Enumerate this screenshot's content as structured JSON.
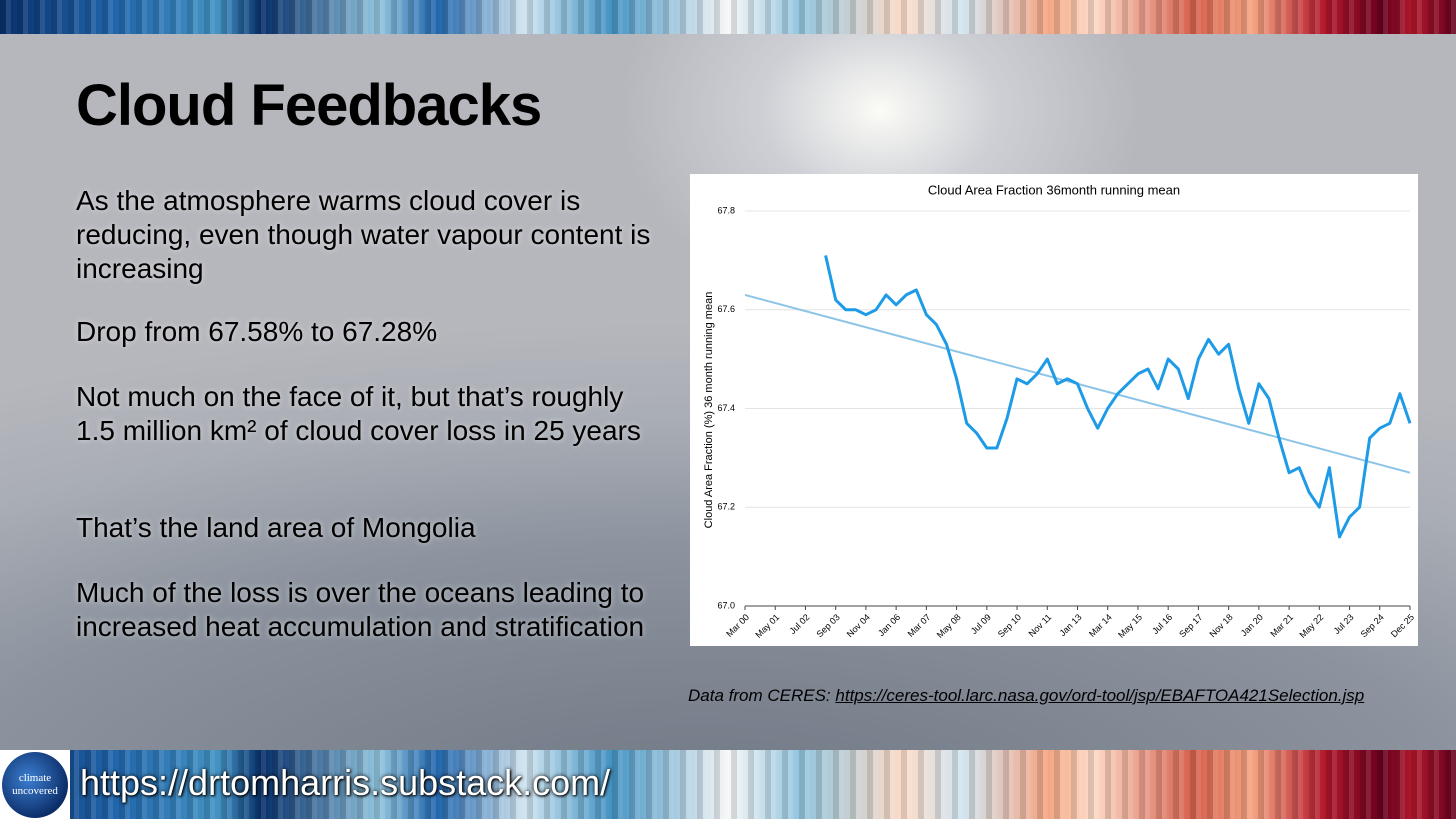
{
  "slide": {
    "title": "Cloud Feedbacks",
    "paragraphs": [
      "As the atmosphere warms cloud cover is reducing, even though water vapour content is increasing",
      "Drop from 67.58% to 67.28%",
      "Not much on the face of it, but that’s roughly 1.5 million km² of cloud cover loss in 25 years",
      "That’s the land area of Mongolia",
      "Much of the loss is over the oceans leading to increased heat accumulation and stratification"
    ],
    "source_prefix": "Data from CERES:",
    "source_link": "https://ceres-tool.larc.nasa.gov/ord-tool/jsp/EBAFTOA421Selection.jsp",
    "logo_text": [
      "climate",
      "uncovered"
    ],
    "footer_url": "https://drtomharris.substack.com/"
  },
  "chart_data": {
    "type": "line",
    "title": "Cloud Area Fraction 36month running mean",
    "y_label": "Cloud Area Fraction (%) 36 month running mean",
    "categories": [
      "Mar 00",
      null,
      null,
      "May 01",
      null,
      null,
      "Jul 02",
      null,
      null,
      "Sep 03",
      null,
      null,
      "Nov 04",
      null,
      null,
      "Jan 06",
      null,
      null,
      "Mar 07",
      null,
      null,
      "May 08",
      null,
      null,
      "Jul 09",
      null,
      null,
      "Sep 10",
      null,
      null,
      "Nov 11",
      null,
      null,
      "Jan 13",
      null,
      null,
      "Mar 14",
      null,
      null,
      "May 15",
      null,
      null,
      "Jul 16",
      null,
      null,
      "Sep 17",
      null,
      null,
      "Nov 18",
      null,
      null,
      "Jan 20",
      null,
      null,
      "Mar 21",
      null,
      null,
      "May 22",
      null,
      null,
      "Jul 23",
      null,
      null,
      "Sep 24",
      null,
      null,
      "Dec 25"
    ],
    "series": [
      {
        "color": "#1e9be6",
        "values": [
          null,
          null,
          null,
          null,
          null,
          null,
          null,
          null,
          67.71,
          67.62,
          67.6,
          67.6,
          67.59,
          67.6,
          67.63,
          67.61,
          67.63,
          67.64,
          67.59,
          67.57,
          67.53,
          67.46,
          67.37,
          67.35,
          67.32,
          67.32,
          67.38,
          67.46,
          67.45,
          67.47,
          67.5,
          67.45,
          67.46,
          67.45,
          67.4,
          67.36,
          67.4,
          67.43,
          67.45,
          67.47,
          67.48,
          67.44,
          67.5,
          67.48,
          67.42,
          67.5,
          67.54,
          67.51,
          67.53,
          67.44,
          67.37,
          67.45,
          67.42,
          67.34,
          67.27,
          67.28,
          67.23,
          67.2,
          67.28,
          67.14,
          67.18,
          67.2,
          67.34,
          67.36,
          67.37,
          67.43,
          67.37
        ]
      }
    ],
    "trendline": {
      "color": "#8cc4e8",
      "start": 67.63,
      "end": 67.27
    },
    "ylim": [
      67.0,
      67.8
    ],
    "yticks": [
      {
        "value": 67,
        "label": "67.0"
      },
      67.2,
      67.4,
      67.6,
      67.8
    ],
    "grid": true
  }
}
